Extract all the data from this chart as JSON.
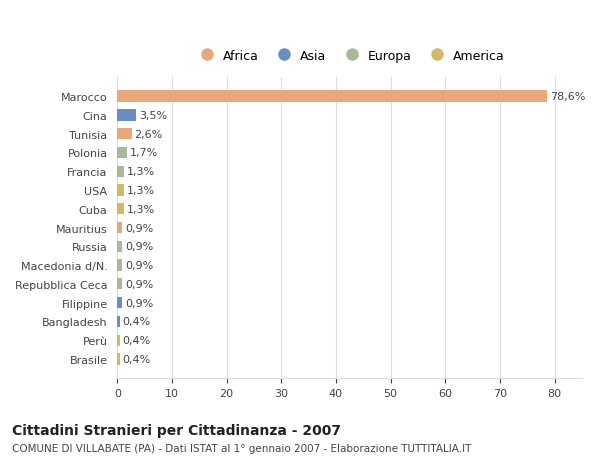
{
  "title": "Cittadini Stranieri per Cittadinanza - 2007",
  "subtitle": "COMUNE DI VILLABATE (PA) - Dati ISTAT al 1° gennaio 2007 - Elaborazione TUTTITALIA.IT",
  "categories": [
    "Brasile",
    "Perù",
    "Bangladesh",
    "Filippine",
    "Repubblica Ceca",
    "Macedonia d/N.",
    "Russia",
    "Mauritius",
    "Cuba",
    "USA",
    "Francia",
    "Polonia",
    "Tunisia",
    "Cina",
    "Marocco"
  ],
  "values": [
    0.4,
    0.4,
    0.4,
    0.9,
    0.9,
    0.9,
    0.9,
    0.9,
    1.3,
    1.3,
    1.3,
    1.7,
    2.6,
    3.5,
    78.6
  ],
  "labels": [
    "0,4%",
    "0,4%",
    "0,4%",
    "0,9%",
    "0,9%",
    "0,9%",
    "0,9%",
    "0,9%",
    "1,3%",
    "1,3%",
    "1,3%",
    "1,7%",
    "2,6%",
    "3,5%",
    "78,6%"
  ],
  "continents": [
    "America",
    "America",
    "Asia",
    "Asia",
    "Europa",
    "Europa",
    "Europa",
    "Africa",
    "America",
    "America",
    "Europa",
    "Europa",
    "Africa",
    "Asia",
    "Africa"
  ],
  "colors": {
    "Africa": "#E8A87C",
    "Asia": "#6B8CBE",
    "Europa": "#A8B89A",
    "America": "#D4B86A"
  },
  "legend_order": [
    "Africa",
    "Asia",
    "Europa",
    "America"
  ],
  "legend_colors": [
    "#E8A87C",
    "#6B8CBE",
    "#A8B89A",
    "#D4B86A"
  ],
  "background_color": "#FFFFFF",
  "grid_color": "#DDDDDD",
  "xlim": [
    0,
    85
  ],
  "xticks": [
    0,
    10,
    20,
    30,
    40,
    50,
    60,
    70,
    80
  ]
}
